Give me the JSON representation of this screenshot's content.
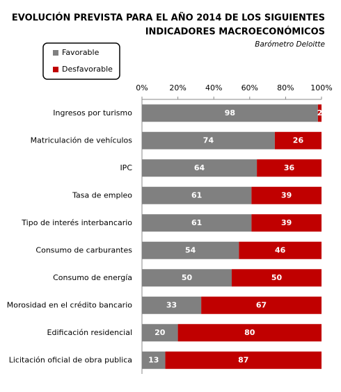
{
  "chart_data": {
    "type": "stacked-bar-horizontal",
    "title": [
      "EVOLUCIÓN PREVISTA PARA EL AÑO 2014 DE LOS SIGUIENTES",
      "INDICADORES MACROECONÓMICOS"
    ],
    "subtitle": "Barómetro Deloitte",
    "categories": [
      "Ingresos por turismo",
      "Matriculación de vehículos",
      "IPC",
      "Tasa de empleo",
      "Tipo de interés interbancario",
      "Consumo de carburantes",
      "Consumo de energía",
      "Morosidad en el crédito bancario",
      "Edificación residencial",
      "Licitación oficial de obra publica"
    ],
    "series": [
      {
        "name": "Favorable",
        "color": "#808080",
        "values": [
          98,
          74,
          64,
          61,
          61,
          54,
          50,
          33,
          20,
          13
        ]
      },
      {
        "name": "Desfavorable",
        "color": "#c00000",
        "values": [
          2,
          26,
          36,
          39,
          39,
          46,
          50,
          67,
          80,
          87
        ]
      }
    ],
    "xlim": [
      0,
      100
    ],
    "xticks": [
      {
        "value": 0,
        "label": "0%"
      },
      {
        "value": 20,
        "label": "20%"
      },
      {
        "value": 40,
        "label": "40%"
      },
      {
        "value": 60,
        "label": "60%"
      },
      {
        "value": 80,
        "label": "80%"
      },
      {
        "value": 100,
        "label": "100%"
      }
    ],
    "legend": "top-left"
  }
}
